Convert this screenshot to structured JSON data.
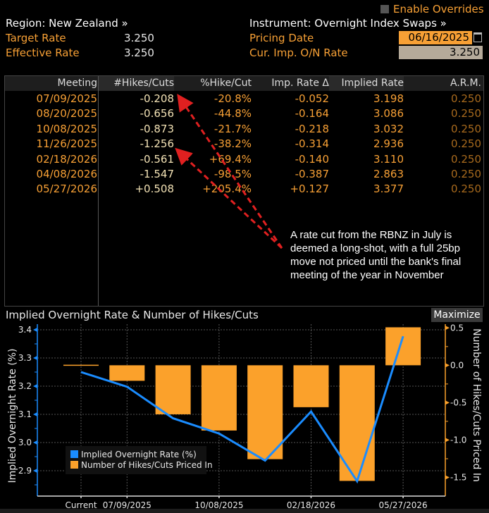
{
  "header": {
    "region_label": "Region: New Zealand »",
    "instrument_label": "Instrument: Overnight Index Swaps »",
    "enable_overrides_label": "Enable Overrides",
    "enable_overrides_checked": false,
    "target_rate_label": "Target Rate",
    "target_rate_value": "3.250",
    "effective_rate_label": "Effective Rate",
    "effective_rate_value": "3.250",
    "pricing_date_label": "Pricing Date",
    "pricing_date_value": "06/16/2025",
    "cur_imp_rate_label": "Cur. Imp. O/N Rate",
    "cur_imp_rate_value": "3.250",
    "calendar_icon": "calendar-icon"
  },
  "table": {
    "columns": [
      "Meeting",
      "#Hikes/Cuts",
      "%Hike/Cut",
      "Imp. Rate Δ",
      "Implied Rate",
      "A.R.M."
    ],
    "rows": [
      {
        "meeting": "07/09/2025",
        "hikes_cuts": "-0.208",
        "pct": "-20.8%",
        "imp_delta": "-0.052",
        "implied": "3.198",
        "arm": "0.250"
      },
      {
        "meeting": "08/20/2025",
        "hikes_cuts": "-0.656",
        "pct": "-44.8%",
        "imp_delta": "-0.164",
        "implied": "3.086",
        "arm": "0.250"
      },
      {
        "meeting": "10/08/2025",
        "hikes_cuts": "-0.873",
        "pct": "-21.7%",
        "imp_delta": "-0.218",
        "implied": "3.032",
        "arm": "0.250"
      },
      {
        "meeting": "11/26/2025",
        "hikes_cuts": "-1.256",
        "pct": "-38.2%",
        "imp_delta": "-0.314",
        "implied": "2.936",
        "arm": "0.250"
      },
      {
        "meeting": "02/18/2026",
        "hikes_cuts": "-0.561",
        "pct": "+69.4%",
        "imp_delta": "-0.140",
        "implied": "3.110",
        "arm": "0.250"
      },
      {
        "meeting": "04/08/2026",
        "hikes_cuts": "-1.547",
        "pct": "-98.5%",
        "imp_delta": "-0.387",
        "implied": "2.863",
        "arm": "0.250"
      },
      {
        "meeting": "05/27/2026",
        "hikes_cuts": "+0.508",
        "pct": "+205.4%",
        "imp_delta": "+0.127",
        "implied": "3.377",
        "arm": "0.250"
      }
    ]
  },
  "annotation": {
    "text": "A rate cut from the RBNZ in July is deemed a long-shot, with a full 25bp move not priced until the bank's final meeting of the year in November",
    "arrow_color": "#e02020"
  },
  "chart_panel": {
    "title": "Implied Overnight Rate & Number of Hikes/Cuts",
    "maximize_label": "Maximize"
  },
  "colors": {
    "line": "#1a8cff",
    "bar": "#fba12b",
    "label_orange": "#f7a035",
    "background": "#000000"
  },
  "chart_data": {
    "type": "bar+line",
    "title": "Implied Overnight Rate & Number of Hikes/Cuts",
    "categories": [
      "Current",
      "07/09/2025",
      "08/20/2025",
      "10/08/2025",
      "11/26/2025",
      "02/18/2026",
      "04/08/2026",
      "05/27/2026"
    ],
    "x_tick_labels": [
      "Current",
      "07/09/2025",
      "10/08/2025",
      "02/18/2026",
      "05/27/2026"
    ],
    "series": [
      {
        "name": "Implied Overnight Rate (%)",
        "type": "line",
        "axis": "left",
        "values": [
          3.25,
          3.198,
          3.086,
          3.032,
          2.936,
          3.11,
          2.863,
          3.377
        ]
      },
      {
        "name": "Number of Hikes/Cuts Priced In",
        "type": "bar",
        "axis": "right",
        "values": [
          0.0,
          -0.208,
          -0.656,
          -0.873,
          -1.256,
          -0.561,
          -1.547,
          0.508
        ]
      }
    ],
    "ylabel_left": "Implied Overnight Rate (%)",
    "ylabel_right": "Number of Hikes/Cuts Priced In",
    "ylim_left": [
      2.81,
      3.42
    ],
    "ylim_right": [
      -1.75,
      0.55
    ],
    "yticks_left": [
      "3.4",
      "3.3",
      "3.2",
      "3.1",
      "3.0",
      "2.9"
    ],
    "yticks_right": [
      "0.5",
      "0.0",
      "-0.5",
      "-1.0",
      "-1.5"
    ],
    "grid": true,
    "legend": "bottom-left",
    "legend_entries": [
      "Implied Overnight Rate (%)",
      "Number of Hikes/Cuts Priced In"
    ]
  }
}
